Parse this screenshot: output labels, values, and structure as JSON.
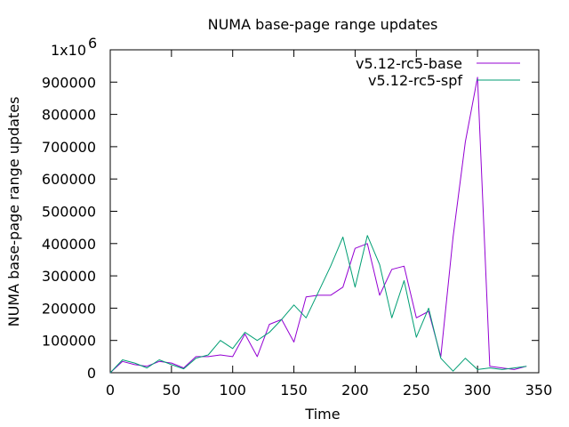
{
  "chart_data": {
    "type": "line",
    "title": "NUMA base-page range updates",
    "xlabel": "Time",
    "ylabel": "NUMA base-page range updates",
    "xlim": [
      0,
      350
    ],
    "ylim": [
      0,
      1000000
    ],
    "x_ticks": [
      0,
      50,
      100,
      150,
      200,
      250,
      300,
      350
    ],
    "x_tick_labels": [
      "0",
      "50",
      "100",
      "150",
      "200",
      "250",
      "300",
      "350"
    ],
    "y_ticks": [
      0,
      100000,
      200000,
      300000,
      400000,
      500000,
      600000,
      700000,
      800000,
      900000,
      1000000
    ],
    "y_tick_labels": [
      "0",
      "100000",
      "200000",
      "300000",
      "400000",
      "500000",
      "600000",
      "700000",
      "800000",
      "900000",
      "1x10"
    ],
    "y_top_exponent": "6",
    "grid": false,
    "legend_position": "top-right",
    "series": [
      {
        "name": "v5.12-rc5-base",
        "color": "#9400d3",
        "x": [
          0,
          10,
          20,
          30,
          40,
          50,
          60,
          70,
          80,
          90,
          100,
          110,
          120,
          130,
          140,
          150,
          160,
          170,
          180,
          190,
          200,
          210,
          220,
          230,
          240,
          250,
          260,
          270,
          280,
          290,
          300,
          310,
          320,
          330,
          340
        ],
        "y": [
          0,
          35000,
          25000,
          20000,
          35000,
          30000,
          15000,
          50000,
          50000,
          55000,
          50000,
          120000,
          50000,
          150000,
          165000,
          95000,
          235000,
          240000,
          240000,
          265000,
          385000,
          400000,
          240000,
          320000,
          330000,
          170000,
          190000,
          50000,
          420000,
          715000,
          915000,
          20000,
          15000,
          10000,
          20000
        ]
      },
      {
        "name": "v5.12-rc5-spf",
        "color": "#009e73",
        "x": [
          0,
          10,
          20,
          30,
          40,
          50,
          60,
          70,
          80,
          90,
          100,
          110,
          120,
          130,
          140,
          150,
          160,
          170,
          180,
          190,
          200,
          210,
          220,
          230,
          240,
          250,
          260,
          270,
          280,
          290,
          300,
          310,
          320,
          330,
          340
        ],
        "y": [
          0,
          40000,
          30000,
          15000,
          40000,
          25000,
          12000,
          45000,
          55000,
          100000,
          75000,
          125000,
          100000,
          125000,
          165000,
          210000,
          170000,
          250000,
          330000,
          420000,
          265000,
          425000,
          335000,
          170000,
          285000,
          110000,
          200000,
          45000,
          5000,
          45000,
          10000,
          15000,
          10000,
          15000,
          20000
        ]
      }
    ]
  }
}
